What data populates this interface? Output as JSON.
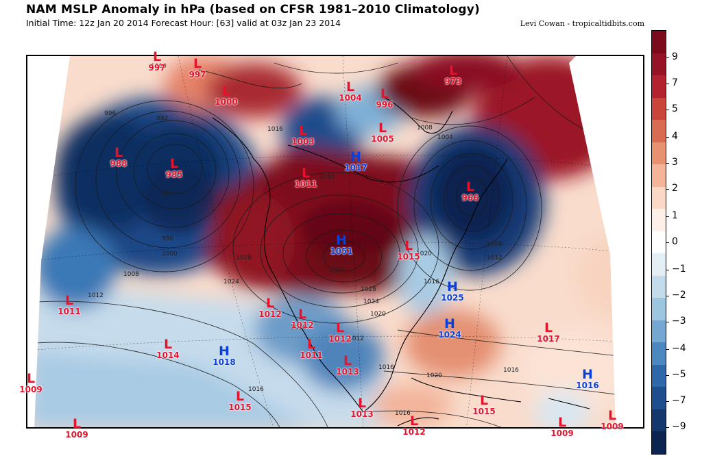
{
  "header": {
    "title": "NAM MSLP Anomaly in hPa (based on CFSR 1981–2010 Climatology)",
    "subtitle": "Initial Time: 12z Jan 20 2014 Forecast Hour: [63] valid at 03z Jan 23 2014",
    "credit": "Levi Cowan - tropicaltidbits.com"
  },
  "colorbar": {
    "labels": [
      "9",
      "7",
      "5",
      "4",
      "3",
      "2",
      "1",
      "0",
      "−1",
      "−2",
      "−3",
      "−4",
      "−5",
      "−7",
      "−9"
    ],
    "colors": [
      "#7a0a1c",
      "#961327",
      "#b3232f",
      "#c94439",
      "#d86b52",
      "#e8906f",
      "#f3b49a",
      "#fbd7c6",
      "#fdf0e9",
      "#ffffff",
      "#e4eef5",
      "#c3dbeb",
      "#9cc5e0",
      "#74a8d2",
      "#4c88c0",
      "#2f68aa",
      "#1f4e8f",
      "#14376e",
      "#0b2450"
    ]
  },
  "pressure_centers": [
    {
      "type": "L",
      "value": "997"
    },
    {
      "type": "L",
      "value": "997"
    },
    {
      "type": "L",
      "value": "1000"
    },
    {
      "type": "L",
      "value": "1004"
    },
    {
      "type": "L",
      "value": "996"
    },
    {
      "type": "L",
      "value": "973"
    },
    {
      "type": "L",
      "value": "1003"
    },
    {
      "type": "L",
      "value": "1005"
    },
    {
      "type": "L",
      "value": "988"
    },
    {
      "type": "L",
      "value": "985"
    },
    {
      "type": "L",
      "value": "1011"
    },
    {
      "type": "H",
      "value": "1017"
    },
    {
      "type": "L",
      "value": "966"
    },
    {
      "type": "H",
      "value": "1051"
    },
    {
      "type": "L",
      "value": "1015"
    },
    {
      "type": "H",
      "value": "1025"
    },
    {
      "type": "L",
      "value": "1011"
    },
    {
      "type": "L",
      "value": "1012"
    },
    {
      "type": "L",
      "value": "1012"
    },
    {
      "type": "L",
      "value": "1012"
    },
    {
      "type": "H",
      "value": "1024"
    },
    {
      "type": "L",
      "value": "1017"
    },
    {
      "type": "L",
      "value": "1014"
    },
    {
      "type": "H",
      "value": "1018"
    },
    {
      "type": "L",
      "value": "1011"
    },
    {
      "type": "L",
      "value": "1013"
    },
    {
      "type": "H",
      "value": "1016"
    },
    {
      "type": "L",
      "value": "1009"
    },
    {
      "type": "L",
      "value": "1015"
    },
    {
      "type": "L",
      "value": "1013"
    },
    {
      "type": "L",
      "value": "1015"
    },
    {
      "type": "L",
      "value": "1009"
    },
    {
      "type": "L",
      "value": "1012"
    },
    {
      "type": "L",
      "value": "1009"
    },
    {
      "type": "L",
      "value": "1009"
    }
  ],
  "isobar_labels": [
    "1000",
    "992",
    "996",
    "984",
    "996",
    "1000",
    "1008",
    "1012",
    "1024",
    "1028",
    "1016",
    "1016",
    "1024",
    "1028",
    "1020",
    "1024",
    "1020",
    "1016",
    "1016",
    "1016",
    "1020",
    "1016",
    "1008",
    "1012",
    "1004",
    "1008",
    "1016",
    "1012",
    "1016"
  ]
}
